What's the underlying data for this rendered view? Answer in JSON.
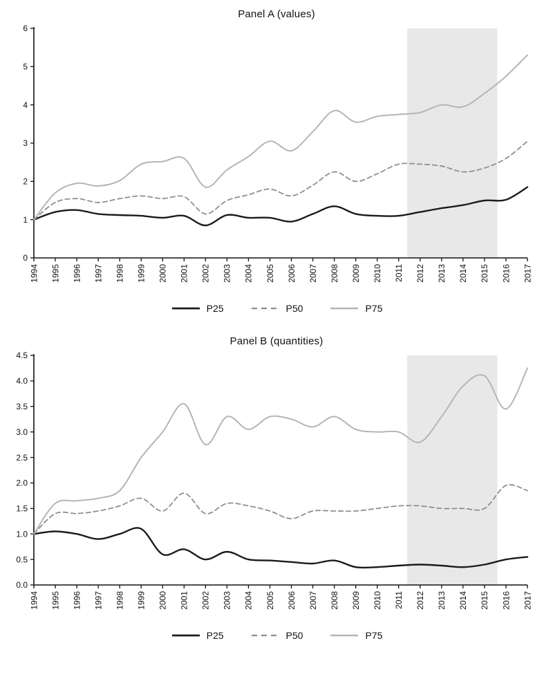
{
  "page": {
    "background": "#ffffff",
    "axis_color": "#111111",
    "shade_color": "#e8e8e8"
  },
  "chart_data": [
    {
      "type": "line",
      "title": "Panel A (values)",
      "xlabel": "",
      "ylabel": "",
      "x": [
        1994,
        1995,
        1996,
        1997,
        1998,
        1999,
        2000,
        2001,
        2002,
        2003,
        2004,
        2005,
        2006,
        2007,
        2008,
        2009,
        2010,
        2011,
        2012,
        2013,
        2014,
        2015,
        2016,
        2017
      ],
      "x_labels": [
        "1994",
        "1995",
        "1996",
        "1997",
        "1998",
        "1999",
        "2000",
        "2001",
        "2002",
        "2003",
        "2004",
        "2005",
        "2006",
        "2007",
        "2008",
        "2009",
        "2010",
        "2011",
        "2012",
        "2013",
        "2014",
        "2015",
        "2016",
        "2017"
      ],
      "ylim": [
        0,
        6
      ],
      "yticks": [
        0,
        1,
        2,
        3,
        4,
        5,
        6
      ],
      "ytick_labels": [
        "0",
        "1",
        "2",
        "3",
        "4",
        "5",
        "6"
      ],
      "grid": false,
      "legend_position": "bottom",
      "axis_color": "#111111",
      "shaded_region": {
        "x0": 2011.4,
        "x1": 2015.6,
        "color": "#e8e8e8"
      },
      "series": [
        {
          "name": "P25",
          "color": "#1b1b1b",
          "dash": "solid",
          "width": 2.4,
          "values": [
            1.0,
            1.2,
            1.25,
            1.15,
            1.12,
            1.1,
            1.05,
            1.1,
            0.85,
            1.12,
            1.05,
            1.05,
            0.95,
            1.15,
            1.35,
            1.15,
            1.1,
            1.1,
            1.2,
            1.3,
            1.38,
            1.5,
            1.52,
            1.85
          ]
        },
        {
          "name": "P50",
          "color": "#8f8f8f",
          "dash": "dashed",
          "width": 1.8,
          "values": [
            1.0,
            1.45,
            1.55,
            1.45,
            1.55,
            1.62,
            1.55,
            1.6,
            1.15,
            1.5,
            1.65,
            1.8,
            1.62,
            1.9,
            2.25,
            2.0,
            2.2,
            2.45,
            2.45,
            2.4,
            2.25,
            2.35,
            2.6,
            3.05
          ]
        },
        {
          "name": "P75",
          "color": "#b5b5b5",
          "dash": "solid",
          "width": 2.0,
          "values": [
            1.0,
            1.7,
            1.95,
            1.88,
            2.02,
            2.45,
            2.52,
            2.6,
            1.85,
            2.3,
            2.65,
            3.05,
            2.8,
            3.3,
            3.85,
            3.55,
            3.7,
            3.75,
            3.8,
            4.0,
            3.95,
            4.3,
            4.75,
            5.3
          ]
        }
      ]
    },
    {
      "type": "line",
      "title": "Panel B (quantities)",
      "xlabel": "",
      "ylabel": "",
      "x": [
        1994,
        1995,
        1996,
        1997,
        1998,
        1999,
        2000,
        2001,
        2002,
        2003,
        2004,
        2005,
        2006,
        2007,
        2008,
        2009,
        2010,
        2011,
        2012,
        2013,
        2014,
        2015,
        2016,
        2017
      ],
      "x_labels": [
        "1994",
        "1995",
        "1996",
        "1997",
        "1998",
        "1999",
        "2000",
        "2001",
        "2002",
        "2003",
        "2004",
        "2005",
        "2006",
        "2007",
        "2008",
        "2009",
        "2010",
        "2011",
        "2012",
        "2013",
        "2014",
        "2015",
        "2016",
        "2017"
      ],
      "ylim": [
        0,
        4.5
      ],
      "yticks": [
        0,
        0.5,
        1.0,
        1.5,
        2.0,
        2.5,
        3.0,
        3.5,
        4.0,
        4.5
      ],
      "ytick_labels": [
        "0.0",
        "0.5",
        "1.0",
        "1.5",
        "2.0",
        "2.5",
        "3.0",
        "3.5",
        "4.0",
        "4.5"
      ],
      "grid": false,
      "legend_position": "bottom",
      "axis_color": "#111111",
      "shaded_region": {
        "x0": 2011.4,
        "x1": 2015.6,
        "color": "#e8e8e8"
      },
      "series": [
        {
          "name": "P25",
          "color": "#1b1b1b",
          "dash": "solid",
          "width": 2.4,
          "values": [
            1.0,
            1.05,
            1.0,
            0.9,
            1.0,
            1.1,
            0.6,
            0.7,
            0.5,
            0.65,
            0.5,
            0.48,
            0.45,
            0.42,
            0.48,
            0.35,
            0.35,
            0.38,
            0.4,
            0.38,
            0.35,
            0.4,
            0.5,
            0.55
          ]
        },
        {
          "name": "P50",
          "color": "#8f8f8f",
          "dash": "dashed",
          "width": 1.8,
          "values": [
            1.0,
            1.4,
            1.4,
            1.45,
            1.55,
            1.7,
            1.45,
            1.8,
            1.4,
            1.6,
            1.55,
            1.45,
            1.3,
            1.45,
            1.45,
            1.45,
            1.5,
            1.55,
            1.55,
            1.5,
            1.5,
            1.5,
            1.95,
            1.85
          ]
        },
        {
          "name": "P75",
          "color": "#b5b5b5",
          "dash": "solid",
          "width": 2.0,
          "values": [
            1.0,
            1.6,
            1.65,
            1.7,
            1.85,
            2.5,
            3.0,
            3.55,
            2.75,
            3.3,
            3.05,
            3.3,
            3.25,
            3.1,
            3.3,
            3.05,
            3.0,
            3.0,
            2.8,
            3.3,
            3.9,
            4.1,
            3.45,
            4.25
          ]
        }
      ]
    }
  ]
}
